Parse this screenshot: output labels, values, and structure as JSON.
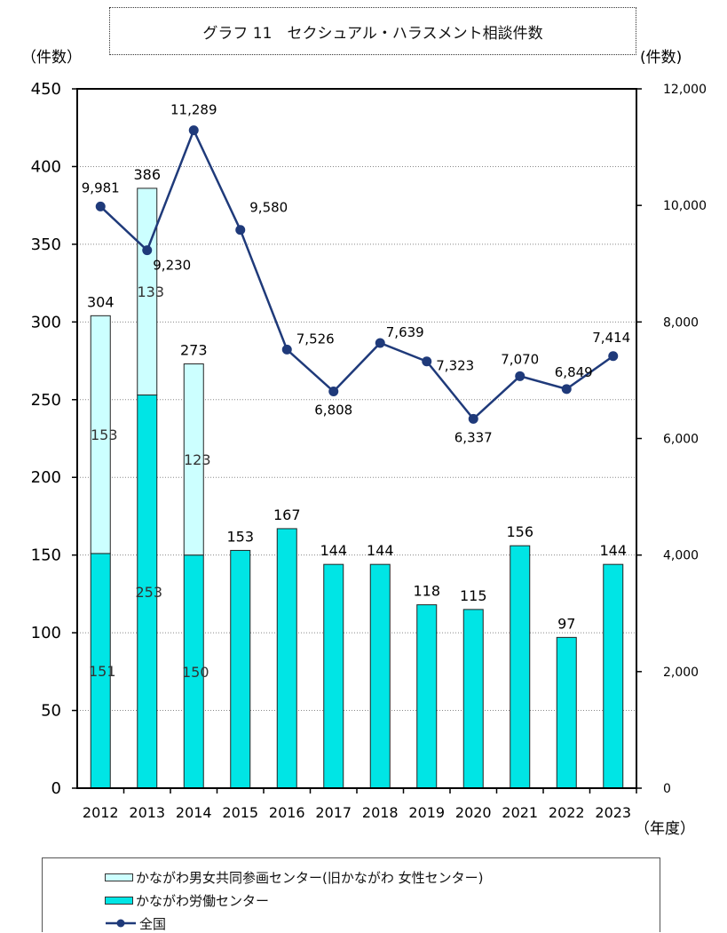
{
  "chart_data": {
    "type": "bar+line",
    "title": "グラフ 11　セクシュアル・ハラスメント相談件数",
    "left_axis_label": "（件数）",
    "right_axis_label": "(件数)",
    "x_unit_label": "（年度）",
    "left_ylim": [
      0,
      450
    ],
    "left_ticks": [
      "0",
      "50",
      "100",
      "150",
      "200",
      "250",
      "300",
      "350",
      "400",
      "450"
    ],
    "right_ylim": [
      0,
      12000
    ],
    "right_ticks": [
      "0",
      "2,000",
      "4,000",
      "6,000",
      "8,000",
      "10,000",
      "12,000"
    ],
    "categories": [
      "2012",
      "2013",
      "2014",
      "2015",
      "2016",
      "2017",
      "2018",
      "2019",
      "2020",
      "2021",
      "2022",
      "2023"
    ],
    "series": [
      {
        "name": "かながわ労働センター",
        "kind": "stacked-bar",
        "color": "#00E5E5",
        "values": [
          151,
          253,
          150,
          153,
          167,
          144,
          144,
          118,
          115,
          156,
          97,
          144
        ],
        "labels": [
          "151",
          "253",
          "150",
          "153",
          "167",
          "144",
          "144",
          "118",
          "115",
          "156",
          "97",
          "144"
        ]
      },
      {
        "name": "かながわ男女共同参画センター(旧かながわ 女性センター)",
        "kind": "stacked-bar",
        "color": "#CCFFFF",
        "values": [
          153,
          133,
          123,
          0,
          0,
          0,
          0,
          0,
          0,
          0,
          0,
          0
        ],
        "labels": [
          "153",
          "133",
          "123",
          "",
          "",
          "",
          "",
          "",
          "",
          "",
          "",
          ""
        ]
      },
      {
        "name": "全国",
        "kind": "line",
        "axis": "right",
        "color": "#1F3A7A",
        "values": [
          9981,
          9230,
          11289,
          9580,
          7526,
          6808,
          7639,
          7323,
          6337,
          7070,
          6849,
          7414
        ],
        "labels": [
          "9,981",
          "9,230",
          "11,289",
          "9,580",
          "7,526",
          "6,808",
          "7,639",
          "7,323",
          "6,337",
          "7,070",
          "6,849",
          "7,414"
        ]
      }
    ],
    "totals": [
      "304",
      "386",
      "273",
      "",
      "",
      "",
      "",
      "",
      "",
      "",
      "",
      ""
    ],
    "grid": true,
    "legend_position": "bottom"
  }
}
